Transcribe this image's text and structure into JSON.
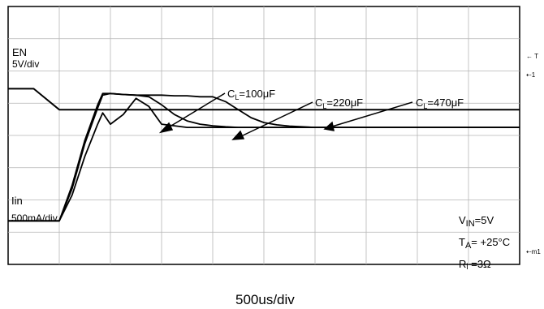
{
  "chart_data": {
    "type": "line",
    "title": "",
    "x_unit_label": "500us/div",
    "x_divisions": 10,
    "y_divisions": 8,
    "x": [
      -1,
      -0.5,
      0,
      0.25,
      0.5,
      0.75,
      0.85,
      1.0,
      1.25,
      1.5,
      1.75,
      2.0,
      2.25,
      2.5,
      2.75,
      3.0,
      3.25,
      3.5,
      3.75,
      4.0,
      4.25,
      4.5,
      5,
      6,
      7,
      8,
      9
    ],
    "series": [
      {
        "name": "EN",
        "scale_label": "5V/div",
        "values": [
          5.45,
          5.45,
          4.8,
          4.8,
          4.8,
          4.8,
          4.8,
          4.8,
          4.8,
          4.8,
          4.8,
          4.8,
          4.8,
          4.8,
          4.8,
          4.8,
          4.8,
          4.8,
          4.8,
          4.8,
          4.8,
          4.8,
          4.8,
          4.8,
          4.8,
          4.8,
          4.8
        ]
      },
      {
        "name": "CL=100μF",
        "label_text": "C_L=100μF",
        "values": [
          0,
          0,
          0,
          0.8,
          2.0,
          3.0,
          3.35,
          3.0,
          3.3,
          3.8,
          3.55,
          3.0,
          2.95,
          2.9,
          2.9,
          2.9,
          2.9,
          2.9,
          2.9,
          2.9,
          2.9,
          2.9,
          2.9,
          2.9,
          2.9,
          2.9,
          2.9
        ]
      },
      {
        "name": "CL=220μF",
        "label_text": "C_L=220μF",
        "values": [
          0,
          0,
          0,
          1.0,
          2.4,
          3.5,
          3.9,
          3.95,
          3.92,
          3.9,
          3.85,
          3.6,
          3.3,
          3.1,
          3.0,
          2.95,
          2.92,
          2.9,
          2.9,
          2.9,
          2.9,
          2.9,
          2.9,
          2.9,
          2.9,
          2.9,
          2.9
        ]
      },
      {
        "name": "CL=470μF",
        "label_text": "C_L=470μF",
        "values": [
          0,
          0,
          0,
          1.1,
          2.5,
          3.6,
          3.95,
          3.95,
          3.92,
          3.9,
          3.9,
          3.9,
          3.88,
          3.88,
          3.85,
          3.85,
          3.7,
          3.45,
          3.2,
          3.05,
          2.98,
          2.94,
          2.9,
          2.9,
          2.9,
          2.9,
          2.9
        ]
      }
    ],
    "iin_label": "Iin",
    "iin_scale": "500mA/div",
    "conditions": {
      "vin": "VIN=5V",
      "ta": "TA= +25°C",
      "rl": "RL =3Ω"
    }
  }
}
